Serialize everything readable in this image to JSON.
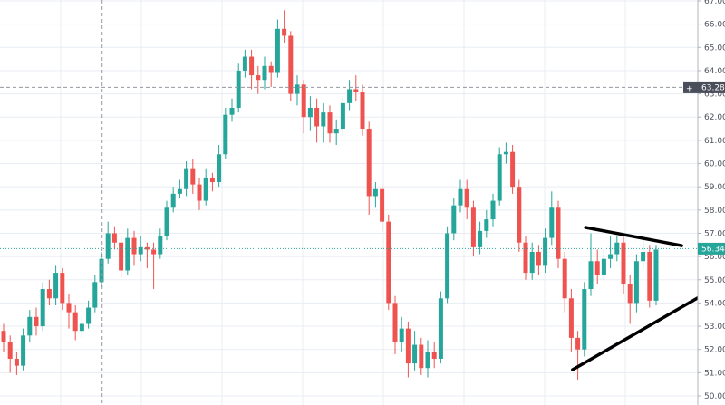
{
  "chart_data": {
    "type": "candlestick",
    "yaxis": {
      "position": "right",
      "ylim": [
        50,
        67
      ],
      "ticks": [
        "67.00",
        "66.00",
        "65.00",
        "64.00",
        "63.00",
        "62.00",
        "61.00",
        "60.00",
        "59.00",
        "58.00",
        "57.00",
        "56.00",
        "55.00",
        "54.00",
        "53.00",
        "52.00",
        "51.00",
        "50.00"
      ]
    },
    "grid": true,
    "colors": {
      "up": "#26a69a",
      "down": "#ef5350",
      "grid": "#e8edf3",
      "last_price": "#26a69a",
      "crosshair_label": "#4a4e5a",
      "trendline": "#000000"
    },
    "candles_ohlc": [
      [
        52.8,
        53.1,
        51.9,
        52.3
      ],
      [
        52.3,
        52.6,
        51.0,
        51.6
      ],
      [
        51.6,
        51.9,
        50.9,
        51.3
      ],
      [
        51.3,
        52.9,
        51.1,
        52.6
      ],
      [
        52.6,
        53.7,
        52.3,
        53.4
      ],
      [
        53.4,
        53.8,
        52.6,
        53.0
      ],
      [
        53.0,
        54.9,
        52.8,
        54.6
      ],
      [
        54.6,
        55.0,
        53.9,
        54.2
      ],
      [
        54.2,
        55.6,
        53.9,
        55.3
      ],
      [
        55.3,
        55.5,
        53.7,
        54.0
      ],
      [
        54.0,
        54.4,
        52.9,
        53.6
      ],
      [
        53.6,
        53.9,
        52.4,
        52.8
      ],
      [
        52.8,
        53.4,
        52.5,
        53.1
      ],
      [
        53.1,
        54.1,
        52.9,
        53.8
      ],
      [
        53.8,
        55.2,
        53.6,
        54.9
      ],
      [
        54.9,
        56.2,
        54.7,
        55.9
      ],
      [
        55.9,
        57.5,
        55.7,
        57.0
      ],
      [
        57.0,
        57.3,
        56.3,
        56.6
      ],
      [
        56.6,
        56.9,
        55.1,
        55.4
      ],
      [
        55.4,
        57.2,
        55.2,
        56.8
      ],
      [
        56.8,
        57.1,
        55.6,
        56.1
      ],
      [
        56.1,
        56.9,
        55.8,
        56.4
      ],
      [
        56.4,
        56.6,
        55.5,
        56.3
      ],
      [
        56.3,
        56.6,
        54.6,
        56.1
      ],
      [
        56.1,
        57.2,
        55.9,
        56.9
      ],
      [
        56.9,
        58.4,
        56.7,
        58.1
      ],
      [
        58.1,
        59.0,
        57.9,
        58.7
      ],
      [
        58.7,
        59.3,
        58.5,
        58.9
      ],
      [
        58.9,
        60.1,
        58.6,
        59.8
      ],
      [
        59.8,
        60.2,
        58.7,
        59.1
      ],
      [
        59.1,
        59.4,
        58.0,
        58.4
      ],
      [
        58.4,
        59.8,
        58.2,
        59.4
      ],
      [
        59.4,
        59.6,
        58.8,
        59.2
      ],
      [
        59.2,
        60.8,
        59.0,
        60.4
      ],
      [
        60.4,
        62.4,
        60.2,
        62.1
      ],
      [
        62.1,
        62.8,
        61.8,
        62.4
      ],
      [
        62.4,
        64.3,
        62.2,
        64.0
      ],
      [
        64.0,
        64.9,
        63.7,
        64.6
      ],
      [
        64.6,
        64.9,
        63.2,
        63.8
      ],
      [
        63.8,
        64.2,
        63.0,
        63.6
      ],
      [
        63.6,
        64.6,
        63.2,
        64.2
      ],
      [
        64.2,
        64.4,
        63.3,
        63.9
      ],
      [
        63.9,
        66.2,
        63.7,
        65.8
      ],
      [
        65.8,
        66.6,
        65.2,
        65.5
      ],
      [
        65.5,
        65.7,
        62.7,
        63.0
      ],
      [
        63.0,
        63.8,
        62.5,
        63.4
      ],
      [
        63.4,
        63.6,
        61.3,
        62.0
      ],
      [
        62.0,
        62.9,
        61.4,
        62.4
      ],
      [
        62.4,
        62.8,
        60.9,
        61.6
      ],
      [
        61.6,
        62.6,
        60.9,
        62.2
      ],
      [
        62.2,
        62.5,
        60.9,
        61.3
      ],
      [
        61.3,
        61.9,
        60.8,
        61.5
      ],
      [
        61.5,
        62.9,
        61.2,
        62.6
      ],
      [
        62.6,
        63.6,
        62.3,
        63.2
      ],
      [
        63.2,
        63.8,
        62.7,
        63.1
      ],
      [
        63.1,
        63.4,
        61.2,
        61.5
      ],
      [
        61.5,
        61.8,
        57.8,
        58.6
      ],
      [
        58.6,
        59.2,
        58.1,
        58.9
      ],
      [
        58.9,
        59.1,
        57.1,
        57.5
      ],
      [
        57.5,
        57.8,
        53.7,
        54.0
      ],
      [
        54.0,
        54.3,
        51.8,
        52.3
      ],
      [
        52.3,
        53.4,
        51.9,
        52.9
      ],
      [
        52.9,
        53.2,
        50.8,
        51.4
      ],
      [
        51.4,
        52.8,
        51.1,
        52.2
      ],
      [
        52.2,
        52.5,
        50.9,
        51.2
      ],
      [
        51.2,
        52.4,
        50.8,
        51.9
      ],
      [
        51.9,
        52.3,
        51.2,
        51.6
      ],
      [
        51.6,
        54.5,
        51.4,
        54.2
      ],
      [
        54.2,
        57.3,
        54.0,
        57.0
      ],
      [
        57.0,
        58.5,
        56.7,
        58.2
      ],
      [
        58.2,
        59.3,
        57.9,
        58.9
      ],
      [
        58.9,
        59.3,
        57.6,
        58.1
      ],
      [
        58.1,
        58.4,
        56.0,
        56.4
      ],
      [
        56.4,
        57.5,
        56.1,
        57.1
      ],
      [
        57.1,
        58.0,
        56.8,
        57.6
      ],
      [
        57.6,
        58.7,
        57.3,
        58.4
      ],
      [
        58.4,
        60.7,
        58.2,
        60.4
      ],
      [
        60.4,
        60.9,
        60.0,
        60.5
      ],
      [
        60.5,
        60.8,
        58.7,
        59.0
      ],
      [
        59.0,
        59.3,
        56.2,
        56.6
      ],
      [
        56.6,
        56.9,
        55.0,
        55.3
      ],
      [
        55.3,
        56.6,
        55.0,
        56.2
      ],
      [
        56.2,
        56.5,
        55.2,
        55.6
      ],
      [
        55.6,
        57.2,
        55.3,
        56.8
      ],
      [
        56.8,
        58.8,
        56.5,
        58.1
      ],
      [
        58.1,
        58.4,
        55.5,
        55.9
      ],
      [
        55.9,
        56.2,
        53.6,
        54.2
      ],
      [
        54.2,
        54.6,
        51.9,
        52.5
      ],
      [
        52.5,
        52.8,
        50.7,
        52.0
      ],
      [
        52.0,
        54.9,
        51.7,
        54.6
      ],
      [
        54.6,
        57.0,
        54.3,
        55.8
      ],
      [
        55.8,
        56.3,
        54.8,
        55.2
      ],
      [
        55.2,
        56.3,
        55.0,
        55.9
      ],
      [
        55.9,
        56.9,
        55.5,
        56.1
      ],
      [
        56.1,
        56.9,
        55.8,
        56.6
      ],
      [
        56.6,
        56.9,
        54.4,
        54.8
      ],
      [
        54.8,
        55.2,
        53.1,
        54.0
      ],
      [
        54.0,
        56.1,
        53.6,
        55.8
      ],
      [
        55.8,
        56.7,
        55.5,
        56.2
      ],
      [
        56.2,
        56.5,
        53.8,
        54.1
      ],
      [
        54.1,
        56.5,
        53.9,
        56.3
      ]
    ],
    "last_price": "56.34",
    "crosshair": {
      "price": 63.28,
      "label": "63.28",
      "candle_index": 15.1
    },
    "trendlines": [
      {
        "from": [
          89.2,
          57.25
        ],
        "to": [
          103.9,
          56.47
        ]
      },
      {
        "from": [
          87.2,
          51.13
        ],
        "to": [
          107.5,
          54.4
        ]
      }
    ]
  }
}
